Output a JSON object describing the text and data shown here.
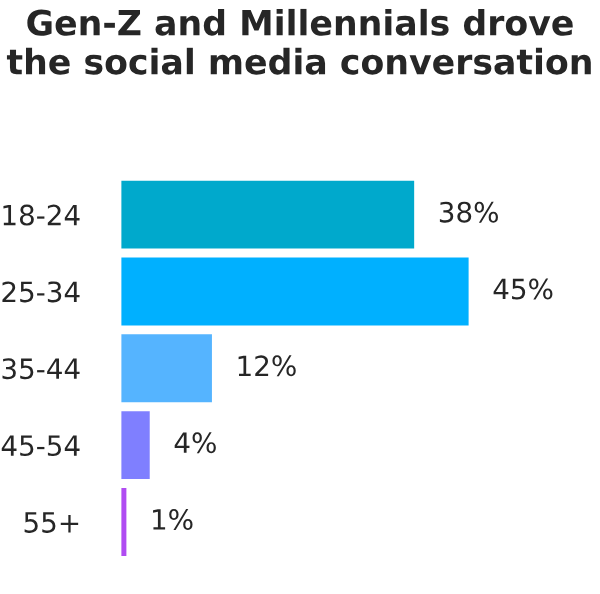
{
  "chart_data": {
    "type": "bar",
    "orientation": "horizontal",
    "title": "Gen-Z and Millennials drove the social media conversation",
    "categories": [
      "18-24",
      "25-34",
      "35-44",
      "45-54",
      "55+"
    ],
    "values": [
      38,
      45,
      12,
      4,
      1
    ],
    "colors": [
      "#00a9cc",
      "#00b0ff",
      "#55b4ff",
      "#7f7fff",
      "#b04cf2"
    ],
    "value_labels": [
      "38%",
      "45%",
      "12%",
      "4%",
      "1%"
    ],
    "grid": false,
    "legend": false
  }
}
